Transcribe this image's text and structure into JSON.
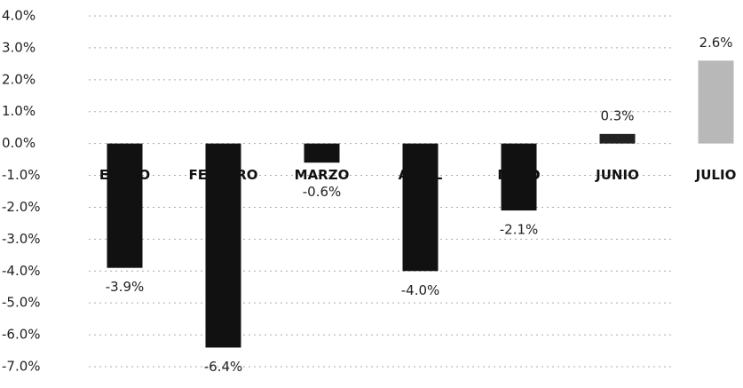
{
  "chart_data": {
    "type": "bar",
    "categories": [
      "ENERO",
      "FEBRERO",
      "MARZO",
      "ABRIL",
      "MAYO",
      "JUNIO",
      "JULIO"
    ],
    "values": [
      -3.9,
      -6.4,
      -0.6,
      -4.0,
      -2.1,
      0.3,
      2.6
    ],
    "value_labels": [
      "-3.9%",
      "-6.4%",
      "-0.6%",
      "-4.0%",
      "-2.1%",
      "0.3%",
      "2.6%"
    ],
    "colors": [
      "#111111",
      "#111111",
      "#111111",
      "#111111",
      "#111111",
      "#222222",
      "#b8b8b8"
    ],
    "ylim": [
      -7,
      4
    ],
    "yticks": [
      {
        "value": -7,
        "label": "-7.0%"
      },
      {
        "value": -6,
        "label": "-6.0%"
      },
      {
        "value": -5,
        "label": "-5.0%"
      },
      {
        "value": -4,
        "label": "-4.0%"
      },
      {
        "value": -3,
        "label": "-3.0%"
      },
      {
        "value": -2,
        "label": "-2.0%"
      },
      {
        "value": -1,
        "label": "-1.0%"
      },
      {
        "value": 0,
        "label": "0.0%"
      },
      {
        "value": 1,
        "label": "1.0%"
      },
      {
        "value": 2,
        "label": "2.0%"
      },
      {
        "value": 3,
        "label": "3.0%"
      },
      {
        "value": 4,
        "label": "4.0%"
      }
    ],
    "grid": true
  }
}
